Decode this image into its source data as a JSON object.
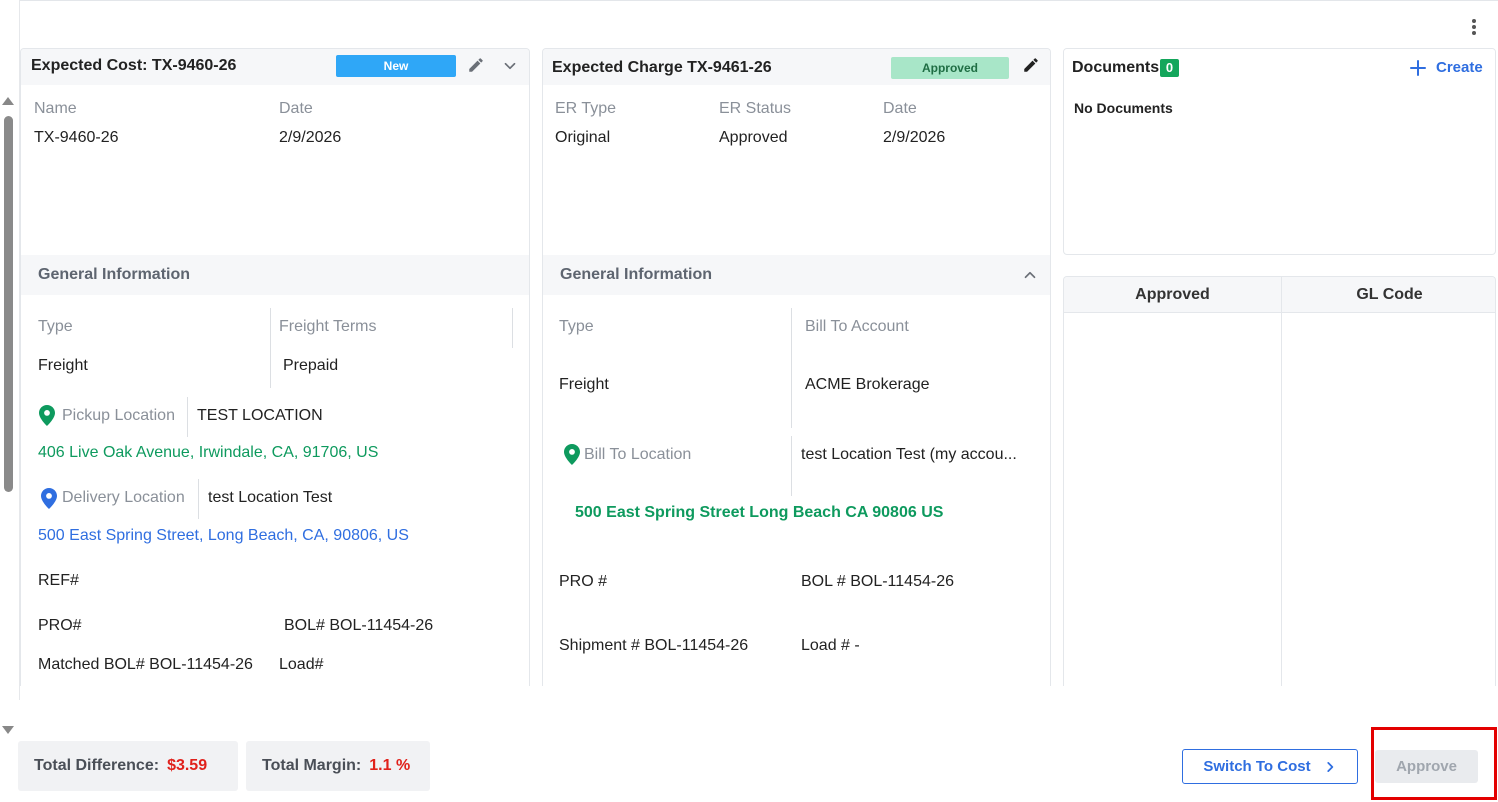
{
  "cost_card": {
    "title": "Expected Cost: TX-9460-26",
    "status_badge": "New",
    "status_color": "#2fa7f7",
    "fields": {
      "name_label": "Name",
      "name_value": "TX-9460-26",
      "date_label": "Date",
      "date_value": "2/9/2026"
    },
    "general": {
      "title": "General Information",
      "type_label": "Type",
      "type_value": "Freight",
      "terms_label": "Freight Terms",
      "terms_value": "Prepaid",
      "pickup_label": "Pickup Location",
      "pickup_name": "TEST LOCATION",
      "pickup_address": "406 Live Oak Avenue, Irwindale, CA, 91706, US",
      "delivery_label": "Delivery Location",
      "delivery_name": "test Location Test",
      "delivery_address": "500 East Spring Street, Long Beach, CA, 90806, US",
      "ref": "REF#",
      "pro": "PRO#",
      "bol": "BOL# BOL-11454-26",
      "matched_bol": "Matched BOL# BOL-11454-26",
      "load": "Load#"
    }
  },
  "charge_card": {
    "title": "Expected Charge TX-9461-26",
    "status_badge": "Approved",
    "status_color": "#a8e6c8",
    "fields": {
      "er_type_label": "ER Type",
      "er_type_value": "Original",
      "er_status_label": "ER Status",
      "er_status_value": "Approved",
      "date_label": "Date",
      "date_value": "2/9/2026"
    },
    "general": {
      "title": "General Information",
      "type_label": "Type",
      "type_value": "Freight",
      "bill_account_label": "Bill To Account",
      "bill_account_value": "ACME Brokerage",
      "bill_location_label": "Bill To Location",
      "bill_location_value": "test Location Test (my accou...",
      "bill_address": "500 East Spring Street Long Beach CA 90806 US",
      "pro": "PRO #",
      "bol": "BOL # BOL-11454-26",
      "shipment": "Shipment # BOL-11454-26",
      "load": "Load # -"
    }
  },
  "documents": {
    "title": "Documents",
    "count": "0",
    "create_label": "Create",
    "empty_text": "No Documents"
  },
  "grid": {
    "columns": [
      "Approved",
      "GL Code"
    ]
  },
  "footer": {
    "total_difference_label": "Total Difference:",
    "total_difference_value": "$3.59",
    "total_margin_label": "Total Margin:",
    "total_margin_value": "1.1 %",
    "switch_label": "Switch To Cost",
    "approve_label": "Approve"
  },
  "colors": {
    "accent_blue": "#2f6ee0",
    "green": "#0e9a5e",
    "red": "#e0211b"
  }
}
